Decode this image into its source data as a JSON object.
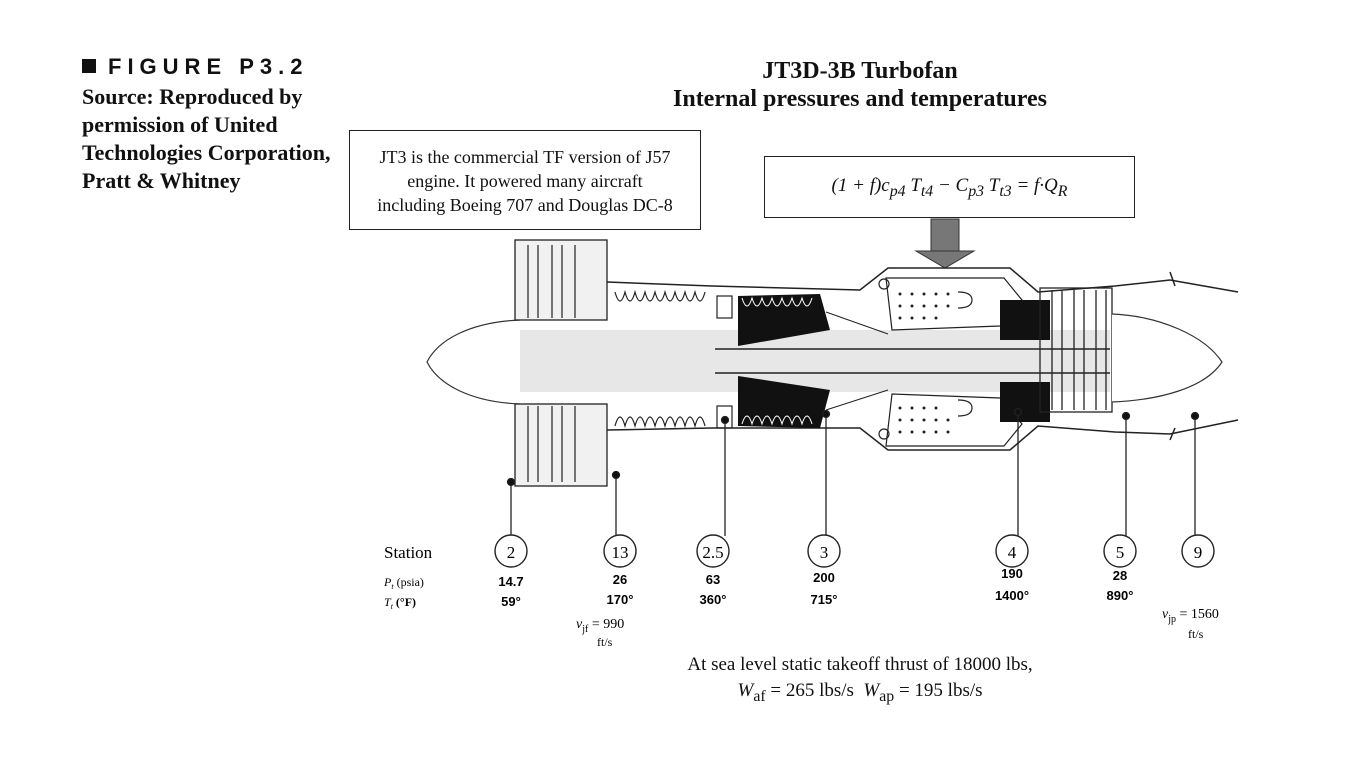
{
  "figure_label": "FIGURE P3.2",
  "source_text": "Source: Reproduced by permission of United Technologies Corporation, Pratt & Whitney",
  "title_line1": "JT3D-3B Turbofan",
  "title_line2": "Internal pressures and temperatures",
  "info_box": {
    "line1": "JT3 is the commercial TF version of J57",
    "line2": "engine.  It powered many aircraft",
    "line3": "including Boeing 707 and Douglas DC-8"
  },
  "equation": "(1 + f)c_p4 T_t4 − C_p3 T_t3 = f·Q_R",
  "station_label": "Station",
  "pt_label": "P_t  (psia)",
  "tt_label": "T_t  (°F)",
  "stations": [
    {
      "id": "2",
      "pt": "14.7",
      "tt": "59°"
    },
    {
      "id": "13",
      "pt": "26",
      "tt": "170°"
    },
    {
      "id": "2.5",
      "pt": "63",
      "tt": "360°"
    },
    {
      "id": "3",
      "pt": "200",
      "tt": "715°"
    },
    {
      "id": "4",
      "pt": "190",
      "tt": "1400°"
    },
    {
      "id": "5",
      "pt": "28",
      "tt": "890°"
    },
    {
      "id": "9",
      "pt": "",
      "tt": ""
    }
  ],
  "fan_jet_velocity": {
    "label": "v_jf",
    "value": "= 990",
    "unit": "ft/s"
  },
  "primary_jet_velocity": {
    "label": "v_jp",
    "value": "= 1560",
    "unit": "ft/s"
  },
  "footer_line1": "At sea level static takeoff thrust of 18000 lbs,",
  "footer_line2": "W_af = 265 lbs/s  W_ap = 195 lbs/s"
}
